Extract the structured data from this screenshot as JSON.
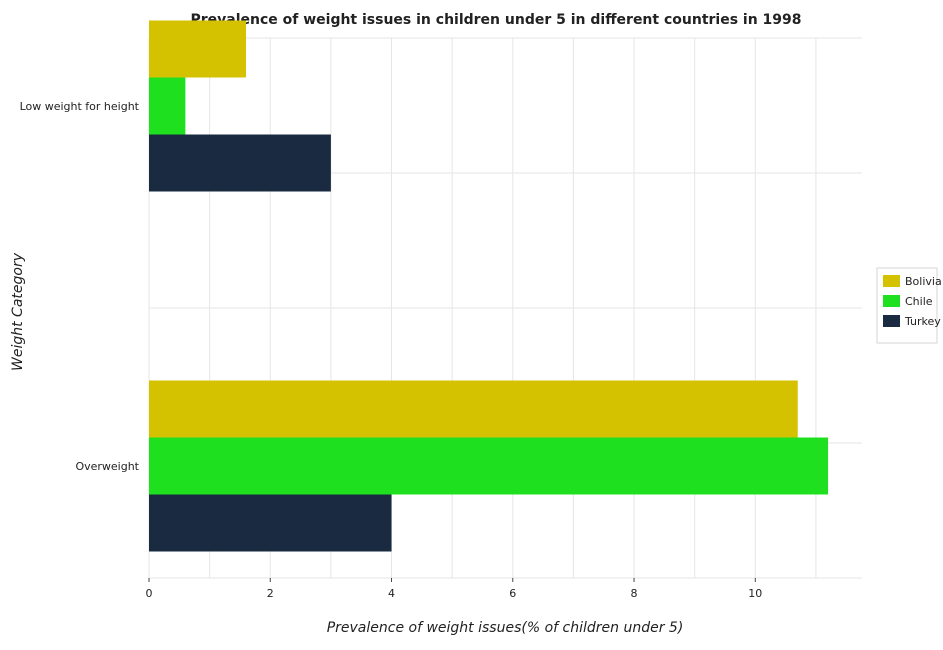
{
  "chart_data": {
    "type": "bar",
    "orientation": "horizontal",
    "title": "Prevalence of weight issues in children under 5 in different countries in 1998",
    "xlabel": "Prevalence of weight issues(% of children under 5)",
    "ylabel": "Weight Category",
    "categories": [
      "Overweight",
      "Low weight for height"
    ],
    "series": [
      {
        "name": "Bolivia",
        "color": "#d4c200",
        "values": [
          10.7,
          1.6
        ]
      },
      {
        "name": "Chile",
        "color": "#1fe01f",
        "values": [
          11.2,
          0.6
        ]
      },
      {
        "name": "Turkey",
        "color": "#1a2a40",
        "values": [
          4.0,
          3.0
        ]
      }
    ],
    "xlim": [
      0,
      11.76
    ],
    "xticks": [
      "0",
      "2",
      "4",
      "6",
      "8",
      "10"
    ],
    "grid": true,
    "legend_position": "right"
  }
}
